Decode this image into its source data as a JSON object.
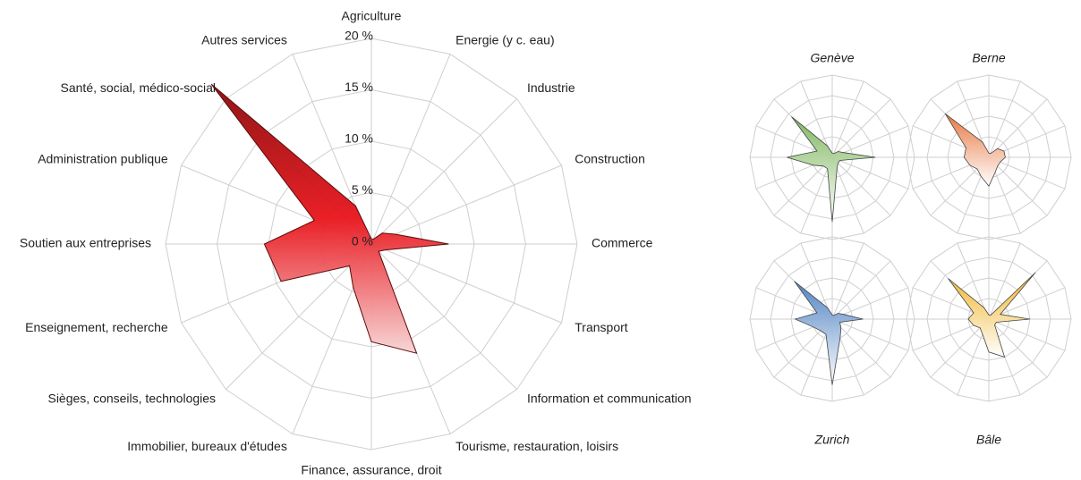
{
  "chart_data": [
    {
      "type": "radar",
      "categories": [
        "Agriculture",
        "Energie (y c. eau)",
        "Industrie",
        "Construction",
        "Commerce",
        "Transport",
        "Information et communication",
        "Tourisme, restauration, loisirs",
        "Finance, assurance, droit",
        "Immobilier, bureaux d'études",
        "Sièges, conseils, technologies",
        "Enseignement, recherche",
        "Soutien aux entreprises",
        "Administration publique",
        "Santé, social, médico-social",
        "Autres services"
      ],
      "values": [
        0.5,
        0.5,
        1.5,
        2.5,
        7.5,
        1.5,
        1,
        11.5,
        9.5,
        4.6,
        3,
        9.5,
        10.4,
        6,
        22,
        4
      ],
      "color": "#e8141b",
      "ylim": [
        0,
        20
      ],
      "yticks": [
        {
          "value": 0,
          "label": "0 %"
        },
        {
          "value": 5,
          "label": "5 %"
        },
        {
          "value": 10,
          "label": "10 %"
        },
        {
          "value": 15,
          "label": "15 %"
        },
        {
          "value": 20,
          "label": "20 %"
        }
      ]
    },
    {
      "type": "radar",
      "title": "Genève",
      "title_position": "top",
      "values": [
        1,
        1,
        2,
        3,
        10.5,
        2,
        2,
        3,
        15.7,
        3,
        3,
        5,
        11,
        4,
        14,
        3
      ],
      "color": "#7cb65a",
      "ylim": [
        0,
        20
      ],
      "yticks": [
        0,
        5,
        10,
        15,
        20
      ],
      "tick_labels": false
    },
    {
      "type": "radar",
      "title": "Berne",
      "title_position": "top",
      "values": [
        1,
        1,
        3,
        4,
        4,
        3,
        3,
        4,
        7,
        5,
        4,
        5,
        6,
        6,
        15,
        4
      ],
      "color": "#e8733a",
      "ylim": [
        0,
        20
      ],
      "yticks": [
        0,
        5,
        10,
        15,
        20
      ],
      "tick_labels": false
    },
    {
      "type": "radar",
      "title": "Zurich",
      "title_position": "bottom",
      "values": [
        1,
        1,
        2,
        3,
        7.5,
        2,
        3,
        5,
        16,
        4,
        4,
        5,
        9,
        4,
        13,
        3
      ],
      "color": "#4a7fc1",
      "ylim": [
        0,
        20
      ],
      "yticks": [
        0,
        5,
        10,
        15,
        20
      ],
      "tick_labels": false
    },
    {
      "type": "radar",
      "title": "Bâle",
      "title_position": "bottom",
      "values": [
        1,
        1,
        16,
        3,
        10,
        2,
        2,
        10,
        8,
        4,
        3,
        4,
        5,
        4,
        14,
        3
      ],
      "color": "#f0b323",
      "ylim": [
        0,
        20
      ],
      "yticks": [
        0,
        5,
        10,
        15,
        20
      ],
      "tick_labels": false
    }
  ]
}
